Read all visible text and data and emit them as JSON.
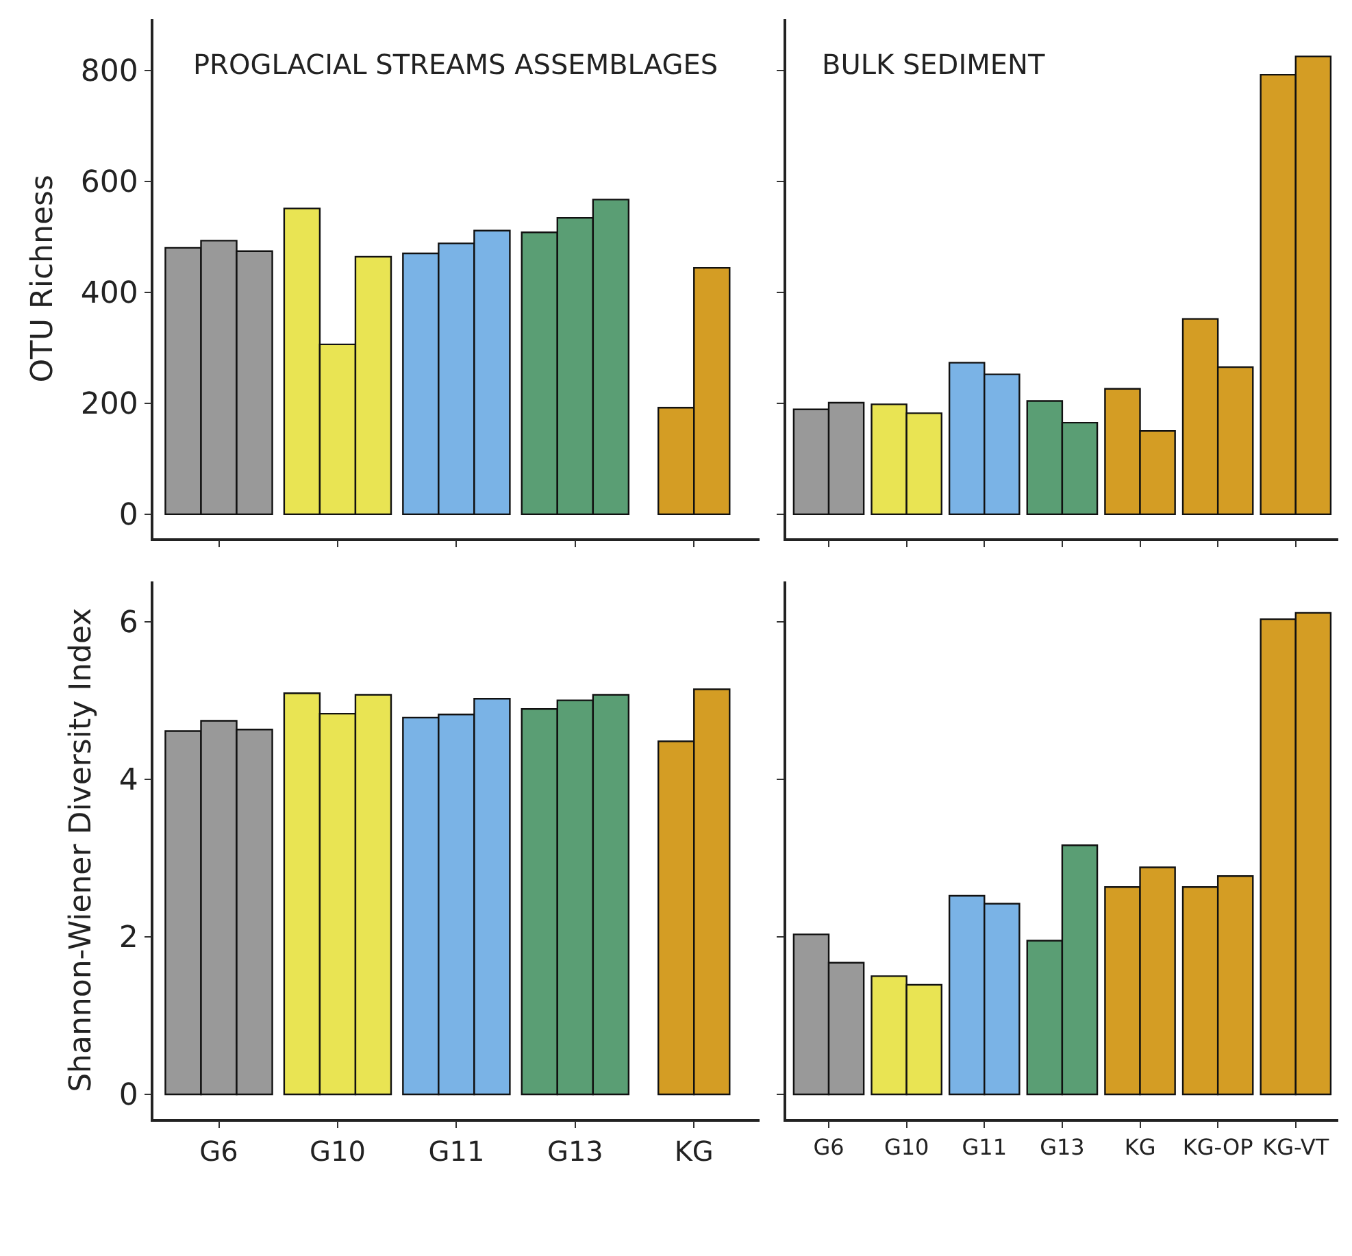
{
  "chart_data": [
    {
      "type": "bar",
      "title": "PROGLACIAL STREAMS ASSEMBLAGES",
      "ylabel": "OTU Richness",
      "categories": [
        null,
        null,
        null,
        null,
        null
      ],
      "ylim": [
        -43,
        892
      ],
      "yticks": [
        0,
        200,
        400,
        600,
        800
      ],
      "tick_labels": "y",
      "series": [
        {
          "values": [
            480,
            551,
            470,
            508,
            192
          ],
          "colors": [
            "#999999",
            "#e9e453",
            "#7ab3e6",
            "#5a9e74",
            "#d49d24"
          ]
        },
        {
          "values": [
            493,
            306,
            488,
            534,
            444
          ],
          "colors": [
            "#999999",
            "#e9e453",
            "#7ab3e6",
            "#5a9e74",
            "#d49d24"
          ]
        },
        {
          "values": [
            474,
            464,
            511,
            567,
            null
          ],
          "colors": [
            "#999999",
            "#e9e453",
            "#7ab3e6",
            "#5a9e74",
            "#d49d24"
          ]
        }
      ]
    },
    {
      "type": "bar",
      "title": "BULK SEDIMENT",
      "categories": [
        null,
        null,
        null,
        null,
        null,
        null,
        null
      ],
      "ylim": [
        -43,
        892
      ],
      "yticks": [
        {
          "value": 0,
          "label": null
        },
        {
          "value": 200,
          "label": null
        },
        {
          "value": 400,
          "label": null
        },
        {
          "value": 600,
          "label": null
        },
        {
          "value": 800,
          "label": null
        }
      ],
      "tick_labels": false,
      "series": [
        {
          "values": [
            189,
            198,
            273,
            204,
            226,
            352,
            792
          ],
          "colors": [
            "#999999",
            "#e9e453",
            "#7ab3e6",
            "#5a9e74",
            "#d49d24",
            "#d49d24",
            "#d49d24"
          ]
        },
        {
          "values": [
            201,
            182,
            252,
            165,
            150,
            265,
            825
          ],
          "colors": [
            "#999999",
            "#e9e453",
            "#7ab3e6",
            "#5a9e74",
            "#d49d24",
            "#d49d24",
            "#d49d24"
          ]
        }
      ]
    },
    {
      "type": "bar",
      "ylabel": "Shannon-Wiener Diversity Index",
      "categories": [
        "G6",
        "G10",
        "G11",
        "G13",
        "KG"
      ],
      "ylim": [
        -0.31,
        6.51
      ],
      "yticks": [
        0,
        2,
        4,
        6
      ],
      "series": [
        {
          "values": [
            4.61,
            5.09,
            4.78,
            4.89,
            4.48
          ],
          "colors": [
            "#999999",
            "#e9e453",
            "#7ab3e6",
            "#5a9e74",
            "#d49d24"
          ]
        },
        {
          "values": [
            4.74,
            4.83,
            4.82,
            5.0,
            5.14
          ],
          "colors": [
            "#999999",
            "#e9e453",
            "#7ab3e6",
            "#5a9e74",
            "#d49d24"
          ]
        },
        {
          "values": [
            4.63,
            5.07,
            5.02,
            5.07,
            null
          ],
          "colors": [
            "#999999",
            "#e9e453",
            "#7ab3e6",
            "#5a9e74",
            "#d49d24"
          ]
        }
      ]
    },
    {
      "type": "bar",
      "categories": [
        "G6",
        "G10",
        "G11",
        "G13",
        "KG",
        "KG-OP",
        "KG-VT"
      ],
      "ylim": [
        -0.31,
        6.51
      ],
      "yticks": [
        {
          "value": 0,
          "label": null
        },
        {
          "value": 2,
          "label": null
        },
        {
          "value": 4,
          "label": null
        },
        {
          "value": 6,
          "label": null
        }
      ],
      "tick_labels": "x",
      "series": [
        {
          "values": [
            2.03,
            1.5,
            2.52,
            1.95,
            2.63,
            2.63,
            6.03
          ],
          "colors": [
            "#999999",
            "#e9e453",
            "#7ab3e6",
            "#5a9e74",
            "#d49d24",
            "#d49d24",
            "#d49d24"
          ]
        },
        {
          "values": [
            1.67,
            1.39,
            2.42,
            3.16,
            2.88,
            2.77,
            6.11
          ],
          "colors": [
            "#999999",
            "#e9e453",
            "#7ab3e6",
            "#5a9e74",
            "#d49d24",
            "#d49d24",
            "#d49d24"
          ]
        }
      ]
    }
  ]
}
